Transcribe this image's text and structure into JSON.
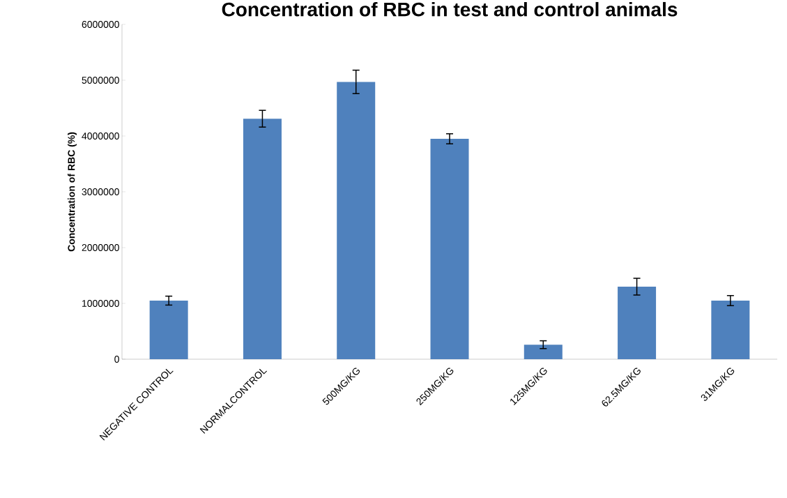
{
  "chart_data": {
    "type": "bar",
    "title": "Concentration of RBC in test and control animals",
    "ylabel": "Concentration of RBC (%)",
    "categories": [
      "NEGATIVE CONTROL",
      "NORMALCONTROL",
      "500MG/KG",
      "250MG/KG",
      "125MG/KG",
      "62.5MG/KG",
      "31MG/KG"
    ],
    "values": [
      1050000,
      4310000,
      4970000,
      3950000,
      260000,
      1300000,
      1050000
    ],
    "errors": [
      80000,
      150000,
      210000,
      90000,
      70000,
      150000,
      90000
    ],
    "color": "#4f81bd",
    "ylim": [
      0,
      6000000
    ],
    "yticks": [
      0,
      1000000,
      2000000,
      3000000,
      4000000,
      5000000,
      6000000
    ],
    "grid": false
  }
}
